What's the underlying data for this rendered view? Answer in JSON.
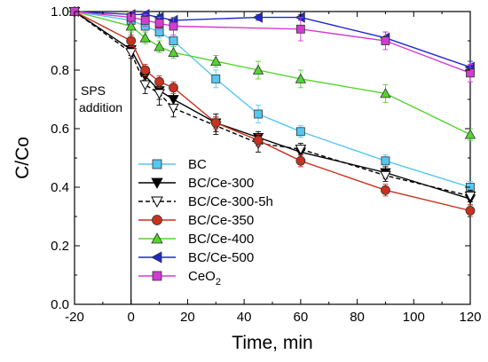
{
  "chart_data": {
    "type": "line",
    "title": "",
    "xlabel": "Time, min",
    "ylabel": "C/Co",
    "xlim": [
      -20,
      120
    ],
    "ylim": [
      0.0,
      1.0
    ],
    "xticks": [
      -20,
      0,
      20,
      40,
      60,
      80,
      100,
      120
    ],
    "xtick_labels": [
      "-20",
      "0",
      "20",
      "40",
      "60",
      "80",
      "100",
      "120"
    ],
    "yticks": [
      0.0,
      0.2,
      0.4,
      0.6,
      0.8,
      1.0
    ],
    "ytick_labels": [
      "0.0",
      "0.2",
      "0.4",
      "0.6",
      "0.8",
      "1.0"
    ],
    "grid": false,
    "legend_position": "bottom-left",
    "annotation": {
      "lines": [
        "SPS",
        "addition"
      ],
      "vline_x": 0
    },
    "series": [
      {
        "name": "BC",
        "color": "#55c8f0",
        "marker": "square",
        "line_style": "solid",
        "x": [
          -20,
          0,
          5,
          10,
          15,
          30,
          45,
          60,
          90,
          120
        ],
        "y": [
          1.0,
          0.97,
          0.95,
          0.93,
          0.9,
          0.77,
          0.65,
          0.59,
          0.49,
          0.4
        ],
        "err": [
          0.01,
          0.02,
          0.02,
          0.02,
          0.02,
          0.03,
          0.03,
          0.02,
          0.02,
          0.02
        ]
      },
      {
        "name": "BC/Ce-300",
        "color": "#000000",
        "marker": "triangle-down",
        "line_style": "solid",
        "x": [
          -20,
          0,
          5,
          10,
          15,
          30,
          45,
          60,
          90,
          120
        ],
        "y": [
          1.0,
          0.87,
          0.78,
          0.73,
          0.7,
          0.62,
          0.57,
          0.52,
          0.45,
          0.36
        ],
        "err": [
          0.01,
          0.02,
          0.02,
          0.03,
          0.03,
          0.03,
          0.02,
          0.02,
          0.02,
          0.02
        ]
      },
      {
        "name": "BC/Ce-300-5h",
        "color": "#000000",
        "marker": "triangle-down-open",
        "line_style": "dashed",
        "x": [
          -20,
          0,
          5,
          10,
          15,
          30,
          45,
          60,
          90,
          120
        ],
        "y": [
          1.0,
          0.86,
          0.75,
          0.72,
          0.67,
          0.61,
          0.55,
          0.53,
          0.44,
          0.37
        ],
        "err": [
          0.01,
          0.02,
          0.03,
          0.04,
          0.03,
          0.03,
          0.03,
          0.02,
          0.02,
          0.02
        ]
      },
      {
        "name": "BC/Ce-350",
        "color": "#c8321e",
        "marker": "circle",
        "line_style": "solid",
        "x": [
          -20,
          0,
          5,
          10,
          15,
          30,
          45,
          60,
          90,
          120
        ],
        "y": [
          1.0,
          0.9,
          0.8,
          0.76,
          0.74,
          0.62,
          0.56,
          0.49,
          0.39,
          0.32
        ],
        "err": [
          0.01,
          0.02,
          0.02,
          0.02,
          0.02,
          0.02,
          0.02,
          0.02,
          0.02,
          0.02
        ]
      },
      {
        "name": "BC/Ce-400",
        "color": "#55d232",
        "marker": "triangle-up",
        "line_style": "solid",
        "x": [
          -20,
          0,
          5,
          10,
          15,
          30,
          45,
          60,
          90,
          120
        ],
        "y": [
          1.0,
          0.95,
          0.91,
          0.88,
          0.86,
          0.83,
          0.8,
          0.77,
          0.72,
          0.58
        ],
        "err": [
          0.01,
          0.02,
          0.02,
          0.02,
          0.02,
          0.02,
          0.03,
          0.03,
          0.03,
          0.02
        ]
      },
      {
        "name": "BC/Ce-500",
        "color": "#1e28d2",
        "marker": "triangle-left",
        "line_style": "solid",
        "x": [
          -20,
          0,
          5,
          10,
          15,
          45,
          60,
          90,
          120
        ],
        "y": [
          1.0,
          0.99,
          0.99,
          0.98,
          0.97,
          0.98,
          0.98,
          0.91,
          0.81
        ],
        "err": [
          0.01,
          0.01,
          0.01,
          0.01,
          0.01,
          0.01,
          0.01,
          0.02,
          0.02
        ]
      },
      {
        "name": "CeO",
        "name_subscript": "2",
        "color": "#d23cd2",
        "marker": "square",
        "line_style": "solid",
        "x": [
          -20,
          0,
          5,
          10,
          15,
          60,
          90,
          120
        ],
        "y": [
          1.0,
          0.98,
          0.97,
          0.96,
          0.95,
          0.94,
          0.9,
          0.79
        ],
        "err": [
          0.01,
          0.02,
          0.02,
          0.02,
          0.03,
          0.04,
          0.03,
          0.03
        ]
      }
    ]
  }
}
